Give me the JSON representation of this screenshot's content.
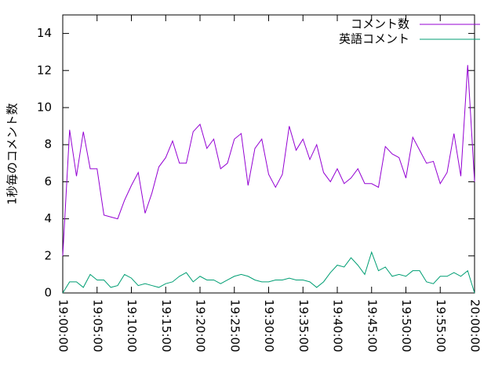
{
  "chart_data": {
    "type": "line",
    "ylabel": "1秒毎のコメント数",
    "x": [
      "19:00:00",
      "19:01:00",
      "19:02:00",
      "19:03:00",
      "19:04:00",
      "19:05:00",
      "19:06:00",
      "19:07:00",
      "19:08:00",
      "19:09:00",
      "19:10:00",
      "19:11:00",
      "19:12:00",
      "19:13:00",
      "19:14:00",
      "19:15:00",
      "19:16:00",
      "19:17:00",
      "19:18:00",
      "19:19:00",
      "19:20:00",
      "19:21:00",
      "19:22:00",
      "19:23:00",
      "19:24:00",
      "19:25:00",
      "19:26:00",
      "19:27:00",
      "19:28:00",
      "19:29:00",
      "19:30:00",
      "19:31:00",
      "19:32:00",
      "19:33:00",
      "19:34:00",
      "19:35:00",
      "19:36:00",
      "19:37:00",
      "19:38:00",
      "19:39:00",
      "19:40:00",
      "19:41:00",
      "19:42:00",
      "19:43:00",
      "19:44:00",
      "19:45:00",
      "19:46:00",
      "19:47:00",
      "19:48:00",
      "19:49:00",
      "19:50:00",
      "19:51:00",
      "19:52:00",
      "19:53:00",
      "19:54:00",
      "19:55:00",
      "19:56:00",
      "19:57:00",
      "19:58:00",
      "19:59:00",
      "20:00:00"
    ],
    "series": [
      {
        "name": "コメント数",
        "color": "#9400d3",
        "values": [
          2.0,
          8.8,
          6.3,
          8.7,
          6.7,
          6.7,
          4.2,
          4.1,
          4.0,
          5.0,
          5.8,
          6.5,
          4.3,
          5.4,
          6.8,
          7.3,
          8.2,
          7.0,
          7.0,
          8.7,
          9.1,
          7.8,
          8.3,
          6.7,
          7.0,
          8.3,
          8.6,
          5.8,
          7.8,
          8.3,
          6.4,
          5.7,
          6.4,
          9.0,
          7.7,
          8.3,
          7.2,
          8.0,
          6.5,
          6.0,
          6.7,
          5.9,
          6.2,
          6.7,
          5.9,
          5.9,
          5.7,
          7.9,
          7.5,
          7.3,
          6.2,
          8.4,
          7.7,
          7.0,
          7.1,
          5.9,
          6.5,
          8.6,
          6.3,
          12.3,
          6.0
        ]
      },
      {
        "name": "英語コメント",
        "color": "#009e73",
        "values": [
          0.0,
          0.6,
          0.6,
          0.3,
          1.0,
          0.7,
          0.7,
          0.3,
          0.4,
          1.0,
          0.8,
          0.4,
          0.5,
          0.4,
          0.3,
          0.5,
          0.6,
          0.9,
          1.1,
          0.6,
          0.9,
          0.7,
          0.7,
          0.5,
          0.7,
          0.9,
          1.0,
          0.9,
          0.7,
          0.6,
          0.6,
          0.7,
          0.7,
          0.8,
          0.7,
          0.7,
          0.6,
          0.3,
          0.6,
          1.1,
          1.5,
          1.4,
          1.9,
          1.5,
          1.0,
          2.2,
          1.2,
          1.4,
          0.9,
          1.0,
          0.9,
          1.2,
          1.2,
          0.6,
          0.5,
          0.9,
          0.9,
          1.1,
          0.9,
          1.2,
          0.0
        ]
      }
    ],
    "xlim": [
      "19:00:00",
      "20:00:00"
    ],
    "xticks": [
      "19:00:00",
      "19:05:00",
      "19:10:00",
      "19:15:00",
      "19:20:00",
      "19:25:00",
      "19:30:00",
      "19:35:00",
      "19:40:00",
      "19:45:00",
      "19:50:00",
      "19:55:00",
      "20:00:00"
    ],
    "ylim": [
      0,
      15
    ],
    "yticks": [
      0,
      2,
      4,
      6,
      8,
      10,
      12,
      14
    ],
    "legend": "top-right"
  }
}
